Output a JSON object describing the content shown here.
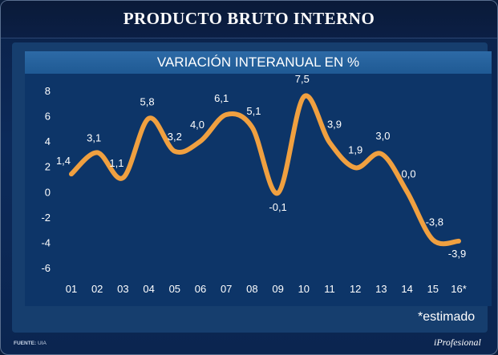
{
  "title": "PRODUCTO BRUTO INTERNO",
  "note": "*estimado",
  "source": {
    "label": "FUENTE:",
    "value": "UIA"
  },
  "brand": "iProfesional",
  "colors": {
    "line": "#f0a040",
    "background": "#0c2a5a",
    "plot": "#0d3568",
    "text": "#ffffff"
  },
  "chart_data": {
    "type": "line",
    "title": "VARIACIÓN INTERANUAL EN %",
    "categories": [
      "01",
      "02",
      "03",
      "04",
      "05",
      "06",
      "07",
      "08",
      "09",
      "10",
      "11",
      "12",
      "13",
      "14",
      "15",
      "16*"
    ],
    "values": [
      1.4,
      3.1,
      1.1,
      5.8,
      3.2,
      4.0,
      6.1,
      5.1,
      -0.1,
      7.5,
      3.9,
      1.9,
      3.0,
      0.0,
      -3.8,
      -3.9
    ],
    "labels": [
      "1,4",
      "3,1",
      "1,1",
      "5,8",
      "3,2",
      "4,0",
      "6,1",
      "5,1",
      "-0,1",
      "7,5",
      "3,9",
      "1,9",
      "3,0",
      "0,0",
      "-3,8",
      "-3,9"
    ],
    "yticks": [
      8,
      6,
      4,
      2,
      0,
      -2,
      -4,
      -6
    ],
    "ylim": [
      -6,
      8
    ],
    "xlabel": "",
    "ylabel": "",
    "grid": false
  }
}
